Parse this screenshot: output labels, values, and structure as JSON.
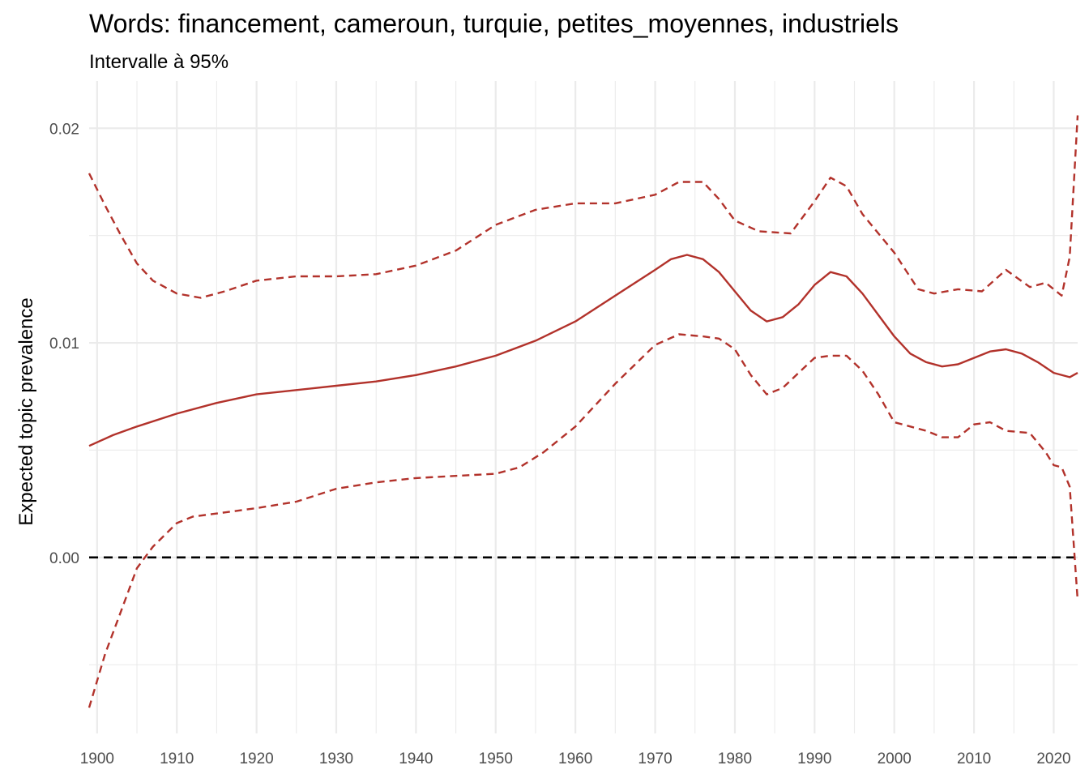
{
  "chart_data": {
    "type": "line",
    "title": "Words: financement, cameroun, turquie, petites_moyennes, industriels",
    "subtitle": "Intervalle à 95%",
    "xlabel": "",
    "ylabel": "Expected topic prevalence",
    "xlim": [
      1899,
      2023
    ],
    "ylim": [
      -0.0082,
      0.0222
    ],
    "x_ticks": [
      1900,
      1910,
      1920,
      1930,
      1940,
      1950,
      1960,
      1970,
      1980,
      1990,
      2000,
      2010,
      2020
    ],
    "y_ticks": [
      0.0,
      0.01,
      0.02
    ],
    "y_tick_labels": [
      "0.00",
      "0.01",
      "0.02"
    ],
    "grid": true,
    "reference_line": {
      "y": 0,
      "style": "dashed",
      "color": "#000000"
    },
    "series_color": "#B2322B",
    "series": [
      {
        "role": "estimate",
        "style": "solid",
        "points": [
          [
            1899,
            0.0052
          ],
          [
            1902,
            0.0057
          ],
          [
            1905,
            0.0061
          ],
          [
            1910,
            0.0067
          ],
          [
            1915,
            0.0072
          ],
          [
            1920,
            0.0076
          ],
          [
            1925,
            0.0078
          ],
          [
            1930,
            0.008
          ],
          [
            1935,
            0.0082
          ],
          [
            1940,
            0.0085
          ],
          [
            1945,
            0.0089
          ],
          [
            1950,
            0.0094
          ],
          [
            1955,
            0.0101
          ],
          [
            1960,
            0.011
          ],
          [
            1965,
            0.0122
          ],
          [
            1970,
            0.0134
          ],
          [
            1972,
            0.0139
          ],
          [
            1974,
            0.0141
          ],
          [
            1976,
            0.0139
          ],
          [
            1978,
            0.0133
          ],
          [
            1980,
            0.0124
          ],
          [
            1982,
            0.0115
          ],
          [
            1984,
            0.011
          ],
          [
            1986,
            0.0112
          ],
          [
            1988,
            0.0118
          ],
          [
            1990,
            0.0127
          ],
          [
            1992,
            0.0133
          ],
          [
            1994,
            0.0131
          ],
          [
            1996,
            0.0123
          ],
          [
            1998,
            0.0113
          ],
          [
            2000,
            0.0103
          ],
          [
            2002,
            0.0095
          ],
          [
            2004,
            0.0091
          ],
          [
            2006,
            0.0089
          ],
          [
            2008,
            0.009
          ],
          [
            2010,
            0.0093
          ],
          [
            2012,
            0.0096
          ],
          [
            2014,
            0.0097
          ],
          [
            2016,
            0.0095
          ],
          [
            2018,
            0.0091
          ],
          [
            2020,
            0.0086
          ],
          [
            2022,
            0.0084
          ],
          [
            2023,
            0.0086
          ]
        ]
      },
      {
        "role": "upper 95% bound",
        "style": "dashed",
        "points": [
          [
            1899,
            0.0179
          ],
          [
            1901,
            0.0164
          ],
          [
            1903,
            0.015
          ],
          [
            1905,
            0.0137
          ],
          [
            1907,
            0.0129
          ],
          [
            1910,
            0.0123
          ],
          [
            1913,
            0.0121
          ],
          [
            1916,
            0.0124
          ],
          [
            1920,
            0.0129
          ],
          [
            1925,
            0.0131
          ],
          [
            1930,
            0.0131
          ],
          [
            1935,
            0.0132
          ],
          [
            1940,
            0.0136
          ],
          [
            1945,
            0.0143
          ],
          [
            1950,
            0.0155
          ],
          [
            1955,
            0.0162
          ],
          [
            1960,
            0.0165
          ],
          [
            1965,
            0.0165
          ],
          [
            1970,
            0.0169
          ],
          [
            1973,
            0.0175
          ],
          [
            1976,
            0.0175
          ],
          [
            1978,
            0.0167
          ],
          [
            1980,
            0.0157
          ],
          [
            1983,
            0.0152
          ],
          [
            1987,
            0.0151
          ],
          [
            1990,
            0.0166
          ],
          [
            1992,
            0.0177
          ],
          [
            1994,
            0.0173
          ],
          [
            1996,
            0.016
          ],
          [
            2000,
            0.0142
          ],
          [
            2003,
            0.0125
          ],
          [
            2005,
            0.0123
          ],
          [
            2008,
            0.0125
          ],
          [
            2011,
            0.0124
          ],
          [
            2014,
            0.0134
          ],
          [
            2017,
            0.0126
          ],
          [
            2019,
            0.0128
          ],
          [
            2021,
            0.0122
          ],
          [
            2022,
            0.014
          ],
          [
            2023,
            0.0206
          ]
        ]
      },
      {
        "role": "lower 95% bound",
        "style": "dashed",
        "points": [
          [
            1899,
            -0.007
          ],
          [
            1901,
            -0.0045
          ],
          [
            1903,
            -0.0025
          ],
          [
            1905,
            -0.0005
          ],
          [
            1907,
            0.0005
          ],
          [
            1910,
            0.0016
          ],
          [
            1912,
            0.0019
          ],
          [
            1916,
            0.0021
          ],
          [
            1920,
            0.0023
          ],
          [
            1925,
            0.0026
          ],
          [
            1930,
            0.0032
          ],
          [
            1935,
            0.0035
          ],
          [
            1940,
            0.0037
          ],
          [
            1945,
            0.0038
          ],
          [
            1950,
            0.0039
          ],
          [
            1953,
            0.0042
          ],
          [
            1956,
            0.0049
          ],
          [
            1960,
            0.0061
          ],
          [
            1965,
            0.0081
          ],
          [
            1970,
            0.0099
          ],
          [
            1973,
            0.0104
          ],
          [
            1976,
            0.0103
          ],
          [
            1978,
            0.0102
          ],
          [
            1980,
            0.0097
          ],
          [
            1982,
            0.0085
          ],
          [
            1984,
            0.0076
          ],
          [
            1986,
            0.0079
          ],
          [
            1988,
            0.0086
          ],
          [
            1990,
            0.0093
          ],
          [
            1992,
            0.0094
          ],
          [
            1994,
            0.0094
          ],
          [
            1996,
            0.0087
          ],
          [
            1998,
            0.0076
          ],
          [
            2000,
            0.0063
          ],
          [
            2004,
            0.0059
          ],
          [
            2006,
            0.0056
          ],
          [
            2008,
            0.0056
          ],
          [
            2010,
            0.0062
          ],
          [
            2012,
            0.0063
          ],
          [
            2014,
            0.0059
          ],
          [
            2017,
            0.0058
          ],
          [
            2019,
            0.0049
          ],
          [
            2020,
            0.0043
          ],
          [
            2021,
            0.0042
          ],
          [
            2022,
            0.0033
          ],
          [
            2023,
            -0.002
          ]
        ]
      }
    ]
  }
}
